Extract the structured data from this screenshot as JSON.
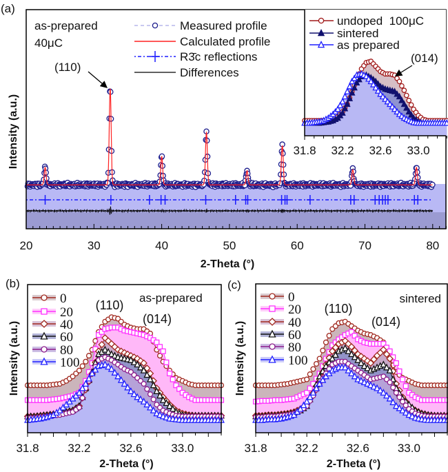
{
  "chart_data": [
    {
      "id": "a",
      "type": "line",
      "panel_label": "(a)",
      "xlabel": "2-Theta (°)",
      "ylabel": "Intensity (a.u.)",
      "xlim": [
        20,
        82
      ],
      "xticks": [
        "20",
        "30",
        "40",
        "50",
        "60",
        "70",
        "80"
      ],
      "annotations": {
        "sample": "as-prepared",
        "dose": "40μC",
        "peak_label": "(110)"
      },
      "legend": [
        {
          "label": "Measured profile",
          "color": "#1c1c8c"
        },
        {
          "label": "Calculated profile",
          "color": "#ff2020"
        },
        {
          "label": "R3̄c reflections",
          "color": "#1a1aff"
        },
        {
          "label": "Differences",
          "color": "#000000"
        }
      ],
      "background": 20,
      "peaks": [
        {
          "two_theta": 22.8,
          "intensity": 28
        },
        {
          "two_theta": 32.4,
          "intensity": 64
        },
        {
          "two_theta": 40.0,
          "intensity": 33
        },
        {
          "two_theta": 46.6,
          "intensity": 44
        },
        {
          "two_theta": 52.6,
          "intensity": 26.5
        },
        {
          "two_theta": 57.8,
          "intensity": 38
        },
        {
          "two_theta": 68.2,
          "intensity": 27
        },
        {
          "two_theta": 77.6,
          "intensity": 28
        }
      ],
      "reflections": [
        22.8,
        32.5,
        38.2,
        39.9,
        40.5,
        46.5,
        50.9,
        52.4,
        52.7,
        57.7,
        58.2,
        58.5,
        61.9,
        67.9,
        68.4,
        71.5,
        72.1,
        72.6,
        73.0,
        73.4,
        77.3,
        77.8
      ]
    },
    {
      "id": "a-inset",
      "type": "line",
      "xlim": [
        31.8,
        33.3
      ],
      "xticks": [
        "31.8",
        "32.2",
        "32.6",
        "33.0"
      ],
      "annotation": "(014)",
      "x": [
        31.8,
        31.85,
        31.9,
        31.95,
        32.0,
        32.05,
        32.1,
        32.15,
        32.2,
        32.25,
        32.3,
        32.35,
        32.4,
        32.45,
        32.5,
        32.55,
        32.6,
        32.65,
        32.7,
        32.75,
        32.8,
        32.85,
        32.9,
        32.95,
        33.0,
        33.05,
        33.1,
        33.15,
        33.2,
        33.25,
        33.3
      ],
      "series": [
        {
          "name": "undoped  100μC",
          "color": "#a01818",
          "fill": "#d6bec6",
          "marker": "circle-open",
          "values": [
            12,
            12,
            12,
            12,
            12,
            12,
            13,
            15,
            19,
            25,
            35,
            45,
            53,
            58,
            59,
            55,
            51,
            49,
            49,
            48,
            43,
            36,
            28,
            21,
            16,
            13,
            12,
            12,
            12,
            12,
            12
          ]
        },
        {
          "name": "sintered",
          "color": "#10106e",
          "fill": "#8f93d0",
          "marker": "triangle-filled",
          "values": [
            10,
            10,
            10,
            10,
            10.5,
            11,
            12,
            14,
            18,
            25,
            34,
            42,
            47,
            48,
            46,
            43,
            39,
            37,
            36,
            35,
            31,
            25,
            19,
            14,
            11,
            10,
            10,
            10,
            10,
            10,
            10
          ]
        },
        {
          "name": "as prepared",
          "color": "#1f1fff",
          "fill": "#b8b8f4",
          "marker": "triangle-open",
          "values": [
            10,
            10,
            10.5,
            11,
            12,
            14,
            17,
            21,
            27,
            35,
            43,
            48,
            49,
            47,
            43,
            38,
            33,
            29,
            25,
            21,
            17,
            14,
            12,
            10.5,
            10,
            10,
            10,
            10,
            10,
            10,
            10
          ]
        }
      ]
    },
    {
      "id": "b",
      "type": "line",
      "panel_label": "(b)",
      "xlabel": "2-Theta (°)",
      "ylabel": "Intensity (a.u.)",
      "xlim": [
        31.8,
        33.3
      ],
      "xticks": [
        "31.8",
        "32.2",
        "32.6",
        "33.0"
      ],
      "annotations": {
        "condition": "as-prepared",
        "peak1": "(110)",
        "peak2": "(014)"
      },
      "x": [
        31.8,
        31.85,
        31.9,
        31.95,
        32.0,
        32.05,
        32.1,
        32.15,
        32.2,
        32.25,
        32.3,
        32.35,
        32.4,
        32.45,
        32.5,
        32.55,
        32.6,
        32.65,
        32.7,
        32.75,
        32.8,
        32.85,
        32.9,
        32.95,
        33.0,
        33.05,
        33.1,
        33.15,
        33.2,
        33.25,
        33.3
      ],
      "series": [
        {
          "name": "0",
          "color": "#a0281e",
          "fill": "#cbb5bb",
          "marker": "circle",
          "values": [
            32,
            32,
            32,
            32,
            32.5,
            33,
            35,
            38,
            42,
            48,
            56,
            68,
            75,
            78,
            77,
            73,
            71,
            70,
            70,
            67,
            56,
            48,
            42,
            37,
            35,
            33,
            32,
            32,
            32,
            32,
            32
          ]
        },
        {
          "name": "20",
          "color": "#ff30ff",
          "fill": "#ffb8f8",
          "marker": "square",
          "values": [
            22,
            22,
            22,
            22,
            22.5,
            23,
            24,
            25,
            27,
            35,
            47,
            66,
            70,
            71,
            71,
            69,
            68,
            67,
            66,
            64,
            61,
            55,
            40,
            32,
            27,
            24,
            22,
            22,
            22,
            22,
            22
          ]
        },
        {
          "name": "40",
          "color": "#a0281e",
          "fill": "#c9a8c8",
          "marker": "diamond",
          "values": [
            11,
            11,
            11.5,
            12,
            12.5,
            13,
            14,
            15,
            18,
            29,
            40,
            55,
            64,
            60,
            56,
            54,
            52,
            50,
            47,
            40,
            30,
            24,
            19,
            15,
            13,
            12,
            11.5,
            11.5,
            11.5,
            11.5,
            11.5
          ]
        },
        {
          "name": "60",
          "color": "#101010",
          "fill": "#9394c8",
          "marker": "triangle",
          "values": [
            11,
            11,
            11.5,
            12,
            12.5,
            13,
            14,
            15,
            18,
            30,
            41,
            53,
            56,
            53,
            51,
            50,
            49,
            46,
            42,
            36,
            28,
            22,
            18,
            14,
            12,
            11.5,
            11.5,
            11.5,
            11.5,
            11.5,
            11.5
          ]
        },
        {
          "name": "80",
          "color": "#8b1a8b",
          "fill": "#b6a2d8",
          "marker": "circle",
          "values": [
            10,
            10,
            10.5,
            11,
            11.5,
            12,
            13,
            14,
            17,
            30,
            40,
            49,
            51,
            49,
            46,
            43,
            41,
            37,
            33,
            26,
            19,
            15,
            13,
            11.5,
            11,
            11,
            11,
            11,
            11,
            11,
            11
          ]
        },
        {
          "name": "100",
          "color": "#2020ff",
          "fill": "#b8b8f6",
          "marker": "triangle",
          "values": [
            8.5,
            9,
            9.5,
            10.5,
            12,
            15,
            19,
            23,
            27,
            33,
            40,
            45,
            46,
            43,
            38,
            33,
            28,
            24,
            21,
            17,
            13,
            11,
            9.5,
            9,
            8.5,
            8.5,
            8.5,
            8.5,
            8.5,
            8.5,
            8.5
          ]
        }
      ]
    },
    {
      "id": "c",
      "type": "line",
      "panel_label": "(c)",
      "xlabel": "2-Theta (°)",
      "ylabel": "Intensity (a.u.)",
      "xlim": [
        31.8,
        33.3
      ],
      "xticks": [
        "31.8",
        "32.2",
        "32.6",
        "33.0"
      ],
      "annotations": {
        "condition": "sintered",
        "peak1": "(110)",
        "peak2": "(014)"
      },
      "x": [
        31.8,
        31.85,
        31.9,
        31.95,
        32.0,
        32.05,
        32.1,
        32.15,
        32.2,
        32.25,
        32.3,
        32.35,
        32.4,
        32.45,
        32.5,
        32.55,
        32.6,
        32.65,
        32.7,
        32.75,
        32.8,
        32.85,
        32.9,
        32.95,
        33.0,
        33.05,
        33.1,
        33.15,
        33.2,
        33.25,
        33.3
      ],
      "series": [
        {
          "name": "0",
          "color": "#a0281e",
          "fill": "#cbb5bb",
          "marker": "circle",
          "values": [
            32,
            32,
            32,
            32,
            32.5,
            33,
            34,
            35,
            36,
            43,
            50,
            61,
            70,
            74,
            75,
            72,
            69,
            67,
            66,
            64,
            61,
            50,
            41,
            37,
            35,
            33,
            32,
            32,
            32,
            32,
            32
          ]
        },
        {
          "name": "20",
          "color": "#ff30ff",
          "fill": "#ffb8f8",
          "marker": "square",
          "values": [
            21,
            21.5,
            21.5,
            22,
            22,
            22.5,
            23,
            25,
            27,
            33,
            40,
            50,
            59,
            63,
            66,
            68,
            63,
            61,
            60,
            60,
            60,
            55,
            47,
            36,
            27,
            24,
            22,
            22,
            22,
            22,
            22
          ]
        },
        {
          "name": "40",
          "color": "#a0281e",
          "fill": "#c9a8c8",
          "marker": "diamond",
          "values": [
            11.5,
            11.5,
            12,
            12,
            12.5,
            13,
            14,
            16,
            19,
            27,
            36,
            46,
            55,
            60,
            62,
            58,
            53,
            50,
            47,
            52,
            56,
            50,
            33,
            24,
            18,
            15,
            13,
            12,
            11.5,
            11.5,
            11.5
          ]
        },
        {
          "name": "60",
          "color": "#101010",
          "fill": "#9394c8",
          "marker": "triangle",
          "values": [
            11,
            11,
            11.5,
            11.5,
            12,
            12.5,
            13.5,
            15,
            18,
            27,
            38,
            45,
            50,
            55,
            57,
            53,
            49,
            45,
            42,
            44,
            46,
            42,
            30,
            23,
            19,
            15,
            13,
            12,
            11.5,
            11.5,
            11.5
          ]
        },
        {
          "name": "80",
          "color": "#8b1a8b",
          "fill": "#b6a2d8",
          "marker": "circle",
          "values": [
            10.5,
            10.5,
            11,
            11,
            11.5,
            12,
            13,
            15,
            18,
            25,
            33,
            40,
            46,
            48,
            48,
            45,
            42,
            39,
            36,
            37,
            38,
            34,
            27,
            21,
            16,
            13,
            11.5,
            11,
            11,
            11,
            11
          ]
        },
        {
          "name": "100",
          "color": "#2020ff",
          "fill": "#b8b8f6",
          "marker": "triangle",
          "values": [
            8.5,
            8.5,
            9,
            9,
            9.5,
            10.5,
            12,
            16,
            21,
            27,
            33,
            38,
            42,
            44,
            44,
            40,
            36,
            34,
            32,
            30,
            27,
            23,
            18,
            15,
            12,
            10,
            9,
            8.5,
            8.5,
            8.5,
            8.5
          ]
        }
      ]
    }
  ]
}
